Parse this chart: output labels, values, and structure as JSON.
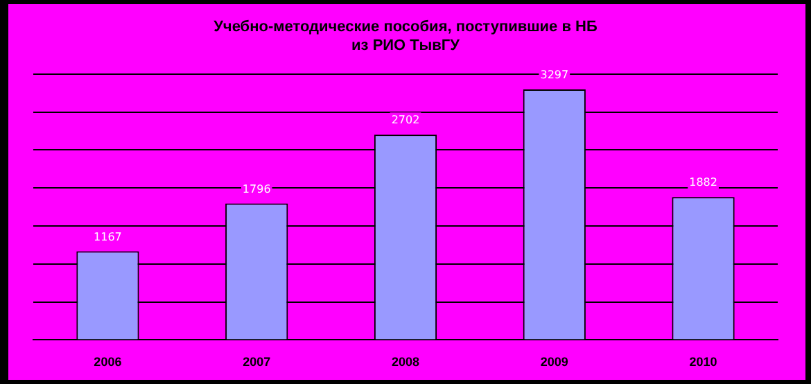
{
  "chart_data": {
    "type": "bar",
    "title": [
      "Учебно-методические пособия, поступившие в НБ",
      "из РИО ТывГУ"
    ],
    "categories": [
      "2006",
      "2007",
      "2008",
      "2009",
      "2010"
    ],
    "values": [
      1167,
      1796,
      2702,
      3297,
      1882
    ],
    "color": "#9999ff",
    "ylim": [
      0,
      3500
    ],
    "yticks": [
      {
        "value": 0,
        "label": null
      },
      {
        "value": 500,
        "label": null
      },
      {
        "value": 1000,
        "label": null
      },
      {
        "value": 1500,
        "label": null
      },
      {
        "value": 2000,
        "label": null
      },
      {
        "value": 2500,
        "label": null
      },
      {
        "value": 3000,
        "label": null
      },
      {
        "value": 3500,
        "label": null
      }
    ],
    "grid": "y",
    "tick_labels": "x",
    "data_labels": true,
    "legend": false
  }
}
